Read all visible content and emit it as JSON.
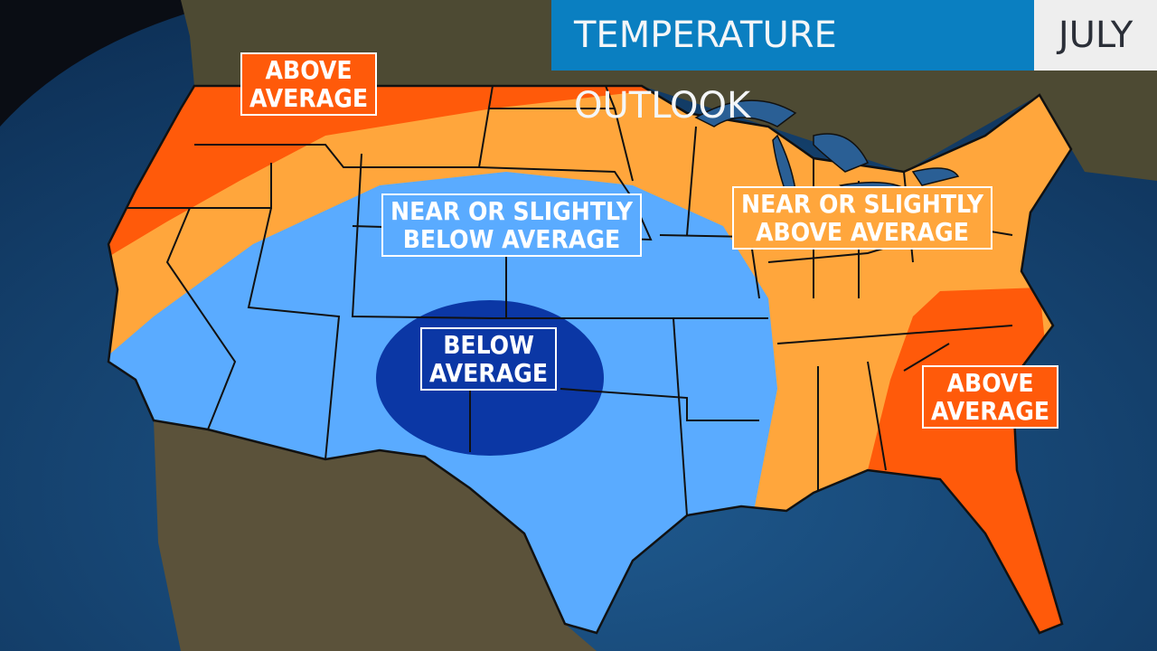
{
  "header": {
    "title": "TEMPERATURE OUTLOOK",
    "month": "JULY"
  },
  "labels": {
    "nw_above": [
      "ABOVE",
      "AVERAGE"
    ],
    "central_near_below": [
      "NEAR OR SLIGHTLY",
      "BELOW AVERAGE"
    ],
    "east_near_above": [
      "NEAR OR SLIGHTLY",
      "ABOVE AVERAGE"
    ],
    "below": [
      "BELOW",
      "AVERAGE"
    ],
    "se_above": [
      "ABOVE",
      "AVERAGE"
    ]
  },
  "colors": {
    "above_average": "#ff5a0a",
    "near_above": "#ffa63c",
    "near_below": "#5aabff",
    "below_average": "#0b37a5",
    "header_blue": "#0a7fc1"
  }
}
